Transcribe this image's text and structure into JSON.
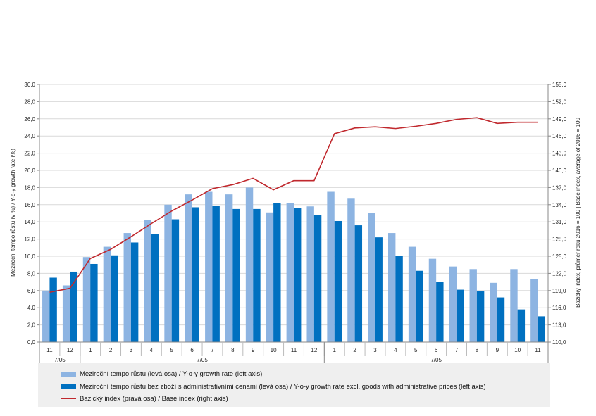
{
  "chart_data": {
    "type": "bar",
    "categories": [
      "11",
      "12",
      "1",
      "2",
      "3",
      "4",
      "5",
      "6",
      "7",
      "8",
      "9",
      "10",
      "11",
      "12",
      "1",
      "2",
      "3",
      "4",
      "5",
      "6",
      "7",
      "8",
      "9",
      "10",
      "11"
    ],
    "year_groups": [
      {
        "label": "7/05",
        "start": 0,
        "end": 1
      },
      {
        "label": "7/05",
        "start": 2,
        "end": 13
      },
      {
        "label": "7/05",
        "start": 14,
        "end": 24
      }
    ],
    "series": [
      {
        "name": "Meziroční tempo růstu (levá osa) / Y-o-y growth rate (left axis)",
        "kind": "bar",
        "axis": "left",
        "color": "#8db4e2",
        "values": [
          6.0,
          6.6,
          9.9,
          11.1,
          12.7,
          14.2,
          16.0,
          17.2,
          17.5,
          17.2,
          18.0,
          15.1,
          16.2,
          15.8,
          17.5,
          16.7,
          15.0,
          12.7,
          11.1,
          9.7,
          8.8,
          8.5,
          6.9,
          8.5,
          7.3
        ]
      },
      {
        "name": "Meziroční tempo růstu bez zboží s administrativními cenami (levá osa) / Y-o-y growth rate excl. goods with administrative prices (left axis)",
        "kind": "bar",
        "axis": "left",
        "color": "#0070c0",
        "values": [
          7.5,
          8.2,
          9.1,
          10.1,
          11.6,
          12.6,
          14.3,
          15.7,
          15.9,
          15.5,
          15.5,
          16.2,
          15.6,
          14.8,
          14.1,
          13.6,
          12.2,
          10.0,
          8.3,
          7.0,
          6.1,
          5.9,
          5.2,
          3.8,
          3.0
        ]
      },
      {
        "name": "Bazický index (pravá osa) / Base index (right axis)",
        "kind": "line",
        "axis": "right",
        "color": "#c0282d",
        "values": [
          118.7,
          119.4,
          124.6,
          126.2,
          128.4,
          130.7,
          132.9,
          134.8,
          136.8,
          137.5,
          138.6,
          136.6,
          138.2,
          138.2,
          146.4,
          147.4,
          147.6,
          147.3,
          147.7,
          148.2,
          148.9,
          149.2,
          148.2,
          148.4,
          148.4
        ]
      }
    ],
    "y_left": {
      "label": "Meziroční tempo růstu (v %) / Y-o-y growth rate (%)",
      "min": 0,
      "max": 30,
      "step": 2,
      "ticks": [
        "0,0",
        "2,0",
        "4,0",
        "6,0",
        "8,0",
        "10,0",
        "12,0",
        "14,0",
        "16,0",
        "18,0",
        "20,0",
        "22,0",
        "24,0",
        "26,0",
        "28,0",
        "30,0"
      ]
    },
    "y_right": {
      "label": "Bazický index, průměr roku 2016 = 100 | Base index, average of 2016 = 100",
      "min": 110,
      "max": 155,
      "step": 3,
      "ticks": [
        "110,0",
        "113,0",
        "116,0",
        "119,0",
        "122,0",
        "125,0",
        "128,0",
        "131,0",
        "134,0",
        "137,0",
        "140,0",
        "143,0",
        "146,0",
        "149,0",
        "152,0",
        "155,0"
      ]
    },
    "grid": true,
    "legend_position": "bottom"
  }
}
